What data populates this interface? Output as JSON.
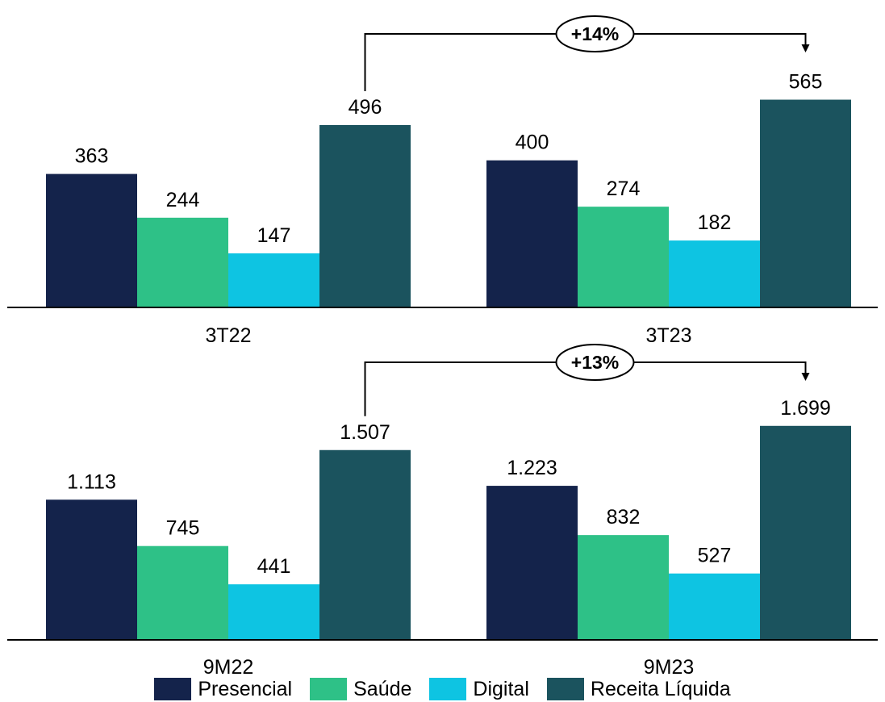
{
  "title": "",
  "colors": {
    "presencial": "#14234b",
    "saude": "#2ec187",
    "digital": "#0ec4e2",
    "receita": "#1b535e",
    "axis": "#000000"
  },
  "legend": [
    {
      "label": "Presencial",
      "color": "#14234b"
    },
    {
      "label": "Saúde",
      "color": "#2ec187"
    },
    {
      "label": "Digital",
      "color": "#0ec4e2"
    },
    {
      "label": "Receita Líquida",
      "color": "#1b535e"
    }
  ],
  "chart_data": [
    {
      "type": "bar",
      "categories": [
        "3T22",
        "3T23"
      ],
      "series": [
        {
          "name": "Presencial",
          "values": [
            363,
            400
          ],
          "labels": [
            "363",
            "400"
          ]
        },
        {
          "name": "Saúde",
          "values": [
            244,
            274
          ],
          "labels": [
            "244",
            "274"
          ]
        },
        {
          "name": "Digital",
          "values": [
            147,
            182
          ],
          "labels": [
            "147",
            "182"
          ]
        },
        {
          "name": "Receita Líquida",
          "values": [
            496,
            565
          ],
          "labels": [
            "496",
            "565"
          ]
        }
      ],
      "annotation": {
        "text": "+14%",
        "from": "3T22",
        "to": "3T23",
        "series": "Receita Líquida"
      },
      "ylim": [
        0,
        600
      ],
      "grid": false,
      "legend": "bottom"
    },
    {
      "type": "bar",
      "categories": [
        "9M22",
        "9M23"
      ],
      "series": [
        {
          "name": "Presencial",
          "values": [
            1113,
            1223
          ],
          "labels": [
            "1.113",
            "1.223"
          ]
        },
        {
          "name": "Saúde",
          "values": [
            745,
            832
          ],
          "labels": [
            "745",
            "832"
          ]
        },
        {
          "name": "Digital",
          "values": [
            441,
            527
          ],
          "labels": [
            "441",
            "527"
          ]
        },
        {
          "name": "Receita Líquida",
          "values": [
            1507,
            1699
          ],
          "labels": [
            "1.507",
            "1.699"
          ]
        }
      ],
      "annotation": {
        "text": "+13%",
        "from": "9M22",
        "to": "9M23",
        "series": "Receita Líquida"
      },
      "ylim": [
        0,
        1800
      ],
      "grid": false,
      "legend": "bottom"
    }
  ]
}
